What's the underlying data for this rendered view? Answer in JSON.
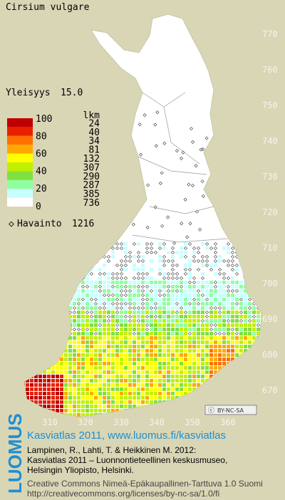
{
  "header": {
    "title": "Cirsium vulgare",
    "frequency_label": "Yleisyys",
    "frequency": "15.0"
  },
  "legend": {
    "count_header": "lkm",
    "scale_labels": [
      "100",
      "80",
      "60",
      "40",
      "20",
      "0"
    ],
    "classes": [
      {
        "color": "#c00000",
        "count": "24"
      },
      {
        "color": "#e82000",
        "count": "40"
      },
      {
        "color": "#ff7000",
        "count": "34"
      },
      {
        "color": "#ffa800",
        "count": "81"
      },
      {
        "color": "#ffff00",
        "count": "132"
      },
      {
        "color": "#c0f000",
        "count": "307"
      },
      {
        "color": "#80e040",
        "count": "290"
      },
      {
        "color": "#90ffa0",
        "count": "287"
      },
      {
        "color": "#c8ffff",
        "count": "385"
      },
      {
        "color": "#ffffff",
        "count": "736"
      }
    ],
    "observation_label": "Havainto",
    "observation_count": "1216"
  },
  "map": {
    "y_labels": [
      "770",
      "760",
      "750",
      "740",
      "730",
      "720",
      "710",
      "700",
      "690",
      "680",
      "670"
    ],
    "x_labels": [
      "310",
      "320",
      "330",
      "340",
      "350",
      "360"
    ],
    "license_badge": "BY-NC-SA"
  },
  "footer": {
    "logo": "LUOMUS",
    "heading": "Kasviatlas 2011, www.luomus.fi/kasviatlas",
    "citation": [
      "Lampinen, R., Lahti, T. & Heikkinen M. 2012:",
      "Kasviatlas 2011 – Luonnontieteellinen keskusmuseo,",
      "Helsingin Yliopisto, Helsinki."
    ],
    "license": "Creative Commons Nimeä-Epäkaupallinen-Tarttuva 1.0 Suomi",
    "license_url": "http://creativecommons.org/licenses/by-nc-sa/1.0/fi"
  }
}
